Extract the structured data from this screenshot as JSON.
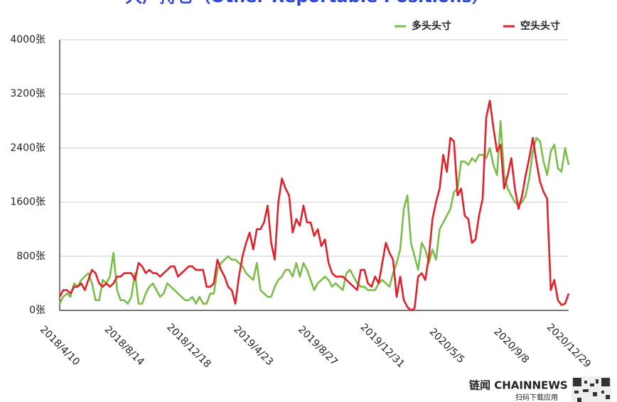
{
  "chart_data": {
    "type": "line",
    "title": "大户持仓（Other Reportable Positions）",
    "brand": "链闻 CHAINNEWS",
    "brand_caption": "扫码下载应用",
    "categories": [
      "2018/4/10",
      null,
      null,
      null,
      null,
      null,
      null,
      null,
      null,
      null,
      null,
      null,
      null,
      null,
      null,
      null,
      null,
      null,
      "2018/8/14",
      null,
      null,
      null,
      null,
      null,
      null,
      null,
      null,
      null,
      null,
      null,
      null,
      null,
      null,
      null,
      null,
      null,
      "2018/12/18",
      null,
      null,
      null,
      null,
      null,
      null,
      null,
      null,
      null,
      null,
      null,
      null,
      null,
      null,
      null,
      null,
      null,
      "2019/4/23",
      null,
      null,
      null,
      null,
      null,
      null,
      null,
      null,
      null,
      null,
      null,
      null,
      null,
      null,
      null,
      null,
      null,
      "2019/8/27",
      null,
      null,
      null,
      null,
      null,
      null,
      null,
      null,
      null,
      null,
      null,
      null,
      null,
      null,
      null,
      null,
      null,
      "2019/12/31",
      null,
      null,
      null,
      null,
      null,
      null,
      null,
      null,
      null,
      null,
      null,
      null,
      null,
      null,
      null,
      null,
      null,
      "2020/5/5",
      null,
      null,
      null,
      null,
      null,
      null,
      null,
      null,
      null,
      null,
      null,
      null,
      null,
      null,
      null,
      null,
      null,
      "2020/9/8",
      null,
      null,
      null,
      null,
      null,
      null,
      null,
      null,
      null,
      null,
      null,
      null,
      null,
      null,
      null,
      "2020/12/29"
    ],
    "series": [
      {
        "name": "多头头寸",
        "color": "#7cbd4a",
        "values": [
          100,
          200,
          250,
          200,
          400,
          350,
          450,
          500,
          550,
          400,
          150,
          150,
          450,
          400,
          500,
          850,
          300,
          150,
          150,
          100,
          200,
          550,
          100,
          100,
          250,
          350,
          400,
          300,
          200,
          250,
          400,
          350,
          300,
          250,
          200,
          150,
          150,
          200,
          100,
          200,
          100,
          100,
          250,
          250,
          600,
          700,
          750,
          800,
          750,
          750,
          700,
          650,
          550,
          500,
          450,
          700,
          300,
          250,
          200,
          200,
          350,
          450,
          500,
          600,
          600,
          500,
          700,
          500,
          700,
          600,
          450,
          300,
          400,
          450,
          500,
          450,
          350,
          400,
          350,
          300,
          550,
          600,
          500,
          400,
          350,
          350,
          300,
          300,
          300,
          400,
          450,
          400,
          350,
          550,
          700,
          900,
          1500,
          1700,
          1000,
          800,
          600,
          1000,
          900,
          700,
          900,
          750,
          1200,
          1300,
          1400,
          1500,
          1750,
          1800,
          2200,
          2200,
          2150,
          2250,
          2200,
          2300,
          2300,
          2250,
          2400,
          2150,
          2000,
          2800,
          2000,
          1800,
          1700,
          1600,
          1550,
          1600,
          1700,
          1950,
          2350,
          2550,
          2500,
          2200,
          2000,
          2350,
          2450,
          2100,
          2050,
          2400,
          2150
        ]
      },
      {
        "name": "空头头寸",
        "color": "#e0202a",
        "values": [
          200,
          300,
          300,
          250,
          350,
          350,
          400,
          300,
          450,
          600,
          550,
          400,
          350,
          400,
          350,
          400,
          500,
          500,
          550,
          550,
          550,
          450,
          700,
          650,
          550,
          600,
          550,
          550,
          500,
          550,
          600,
          650,
          650,
          500,
          550,
          600,
          650,
          650,
          600,
          600,
          600,
          350,
          350,
          400,
          750,
          600,
          500,
          350,
          300,
          100,
          500,
          800,
          1000,
          1150,
          900,
          1200,
          1200,
          1300,
          1550,
          1000,
          750,
          1600,
          1950,
          1800,
          1700,
          1150,
          1350,
          1250,
          1550,
          1300,
          1300,
          1100,
          1200,
          950,
          1050,
          700,
          550,
          500,
          500,
          500,
          450,
          400,
          350,
          300,
          600,
          600,
          400,
          350,
          500,
          400,
          700,
          1000,
          850,
          750,
          200,
          500,
          150,
          50,
          0,
          30,
          500,
          550,
          450,
          800,
          1350,
          1600,
          1800,
          2300,
          2050,
          2550,
          2500,
          1700,
          1800,
          1400,
          1350,
          1000,
          1050,
          1400,
          1650,
          2850,
          3100,
          2700,
          2350,
          2450,
          1800,
          2000,
          2250,
          1800,
          1500,
          1700,
          2000,
          2250,
          2550,
          2200,
          1900,
          1750,
          1650,
          300,
          450,
          150,
          80,
          100,
          250
        ]
      }
    ],
    "ylim": [
      0,
      4000
    ],
    "yticks": [
      {
        "value": 0,
        "label": "0张"
      },
      {
        "value": 800,
        "label": "800张"
      },
      {
        "value": 1600,
        "label": "1600张"
      },
      {
        "value": 2400,
        "label": "2400张"
      },
      {
        "value": 3200,
        "label": "3200张"
      },
      {
        "value": 4000,
        "label": "4000张"
      }
    ],
    "grid": true,
    "legend": "top-right"
  }
}
